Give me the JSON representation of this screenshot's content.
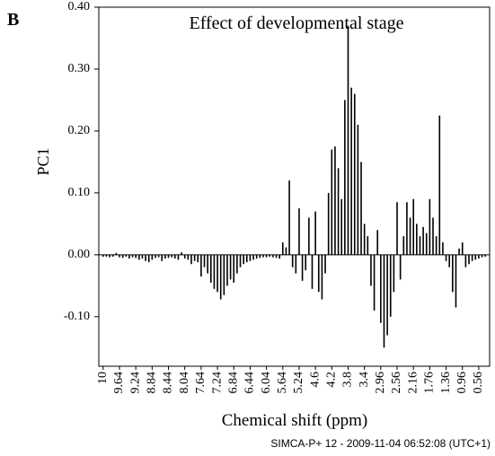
{
  "panel_label": "B",
  "chart_data": {
    "type": "bar",
    "title": "Effect of developmental stage",
    "y_label": "PC1",
    "x_label": "Chemical shift (ppm)",
    "footer": "SIMCA-P+ 12 - 2009-11-04 06:52:08 (UTC+1)",
    "color": "#000000",
    "categories": [
      "10",
      null,
      null,
      null,
      null,
      "9.64",
      null,
      null,
      null,
      null,
      "9.24",
      null,
      null,
      null,
      null,
      "8.84",
      null,
      null,
      null,
      null,
      "8.44",
      null,
      null,
      null,
      null,
      "8.04",
      null,
      null,
      null,
      null,
      "7.64",
      null,
      null,
      null,
      null,
      "7.24",
      null,
      null,
      null,
      null,
      "6.84",
      null,
      null,
      null,
      null,
      "6.44",
      null,
      null,
      null,
      null,
      "6.04",
      null,
      null,
      null,
      null,
      "5.64",
      null,
      null,
      null,
      null,
      "5.24",
      null,
      null,
      null,
      null,
      "4.6",
      null,
      null,
      null,
      null,
      "4.2",
      null,
      null,
      null,
      null,
      "3.8",
      null,
      null,
      null,
      null,
      "3.4",
      null,
      null,
      null,
      null,
      "2.96",
      null,
      null,
      null,
      null,
      "2.56",
      null,
      null,
      null,
      null,
      "2.16",
      null,
      null,
      null,
      null,
      "1.76",
      null,
      null,
      null,
      null,
      "1.36",
      null,
      null,
      null,
      null,
      "0.96",
      null,
      null,
      null,
      null,
      "0.56",
      null,
      null
    ],
    "values": [
      -0.003,
      -0.003,
      -0.004,
      -0.003,
      0.003,
      -0.004,
      -0.005,
      -0.003,
      -0.006,
      -0.004,
      -0.005,
      -0.008,
      -0.006,
      -0.01,
      -0.012,
      -0.008,
      -0.005,
      -0.004,
      -0.01,
      -0.006,
      -0.005,
      -0.004,
      -0.006,
      -0.008,
      0.004,
      -0.006,
      -0.008,
      -0.015,
      -0.01,
      -0.012,
      -0.035,
      -0.02,
      -0.03,
      -0.045,
      -0.055,
      -0.06,
      -0.072,
      -0.065,
      -0.05,
      -0.04,
      -0.045,
      -0.03,
      -0.02,
      -0.015,
      -0.012,
      -0.01,
      -0.008,
      -0.006,
      -0.005,
      -0.004,
      -0.004,
      -0.003,
      -0.004,
      -0.005,
      -0.006,
      0.02,
      0.012,
      0.12,
      -0.02,
      -0.03,
      0.075,
      -0.042,
      -0.025,
      0.06,
      -0.055,
      0.07,
      -0.06,
      -0.072,
      -0.03,
      0.1,
      0.17,
      0.175,
      0.14,
      0.09,
      0.25,
      0.37,
      0.27,
      0.26,
      0.21,
      0.15,
      0.05,
      0.03,
      -0.05,
      -0.09,
      0.04,
      -0.11,
      -0.15,
      -0.13,
      -0.1,
      -0.06,
      0.085,
      -0.04,
      0.03,
      0.085,
      0.06,
      0.09,
      0.05,
      0.03,
      0.045,
      0.035,
      0.09,
      0.06,
      0.03,
      0.225,
      0.02,
      -0.01,
      -0.02,
      -0.06,
      -0.085,
      0.01,
      0.02,
      -0.02,
      -0.015,
      -0.01,
      -0.008,
      -0.006,
      -0.004,
      -0.003
    ],
    "ylim": [
      -0.18,
      0.4
    ],
    "yticks": [
      {
        "value": -0.1,
        "label": "-0.10"
      },
      {
        "value": 0,
        "label": "0.00"
      },
      {
        "value": 0.1,
        "label": "0.10"
      },
      {
        "value": 0.2,
        "label": "0.20"
      },
      {
        "value": 0.3,
        "label": "0.30"
      },
      {
        "value": 0.4,
        "label": "0.40"
      }
    ]
  }
}
